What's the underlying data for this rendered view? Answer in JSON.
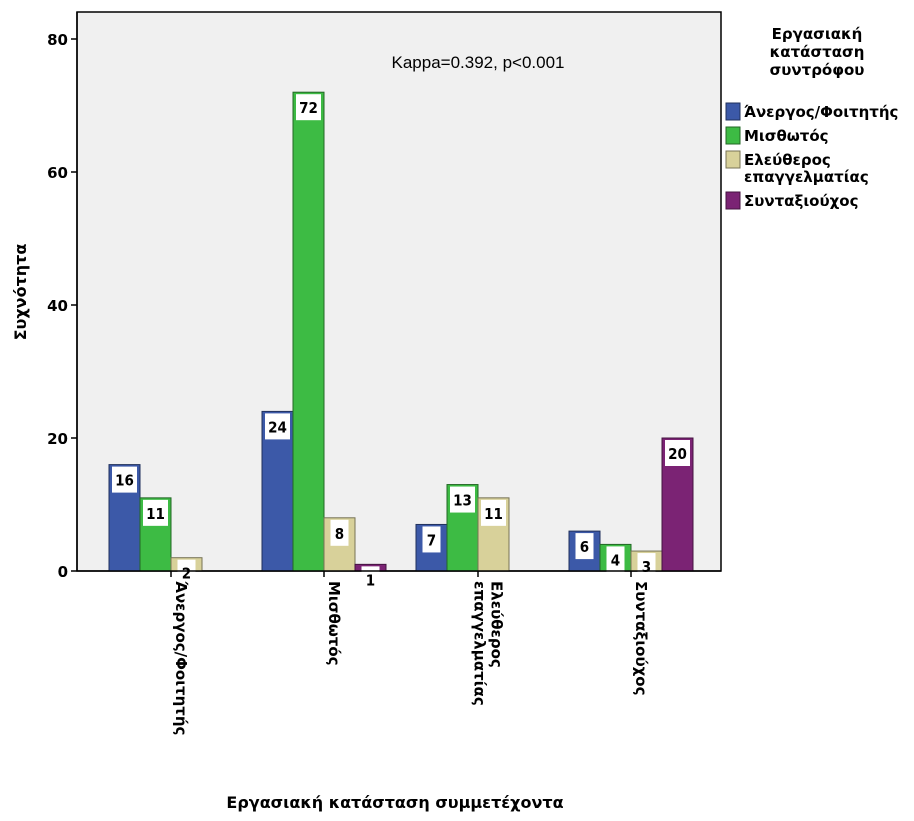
{
  "chart_data": {
    "type": "bar",
    "xlabel": "Εργασιακή κατάσταση συμμετέχοντα",
    "ylabel": "Συχνότητα",
    "annotation": "Kappa=0.392, p<0.001",
    "ylim": [
      0,
      80
    ],
    "yticks": [
      0,
      20,
      40,
      60,
      80
    ],
    "grid": false,
    "legend_position": "right",
    "legend_title": [
      "Εργασιακή",
      "κατάσταση",
      "συντρόφου"
    ],
    "categories": [
      [
        "Άνεργος/Φοιτητής"
      ],
      [
        "Μισθωτός"
      ],
      [
        "Ελεύθερος",
        "επαγγελματίας"
      ],
      [
        "Συνταξιούχος"
      ]
    ],
    "series": [
      {
        "name": "Άνεργος/Φοιτητής",
        "legend_lines": [
          "Άνεργος/Φοιτητής"
        ],
        "color": "#3c59a8",
        "values": [
          16,
          24,
          7,
          6
        ]
      },
      {
        "name": "Μισθωτός",
        "legend_lines": [
          "Μισθωτός"
        ],
        "color": "#3dbb44",
        "values": [
          11,
          72,
          13,
          4
        ]
      },
      {
        "name": "Ελεύθερος επαγγελματίας",
        "legend_lines": [
          "Ελεύθερος",
          "επαγγελματίας"
        ],
        "color": "#d8d19a",
        "values": [
          2,
          8,
          11,
          3
        ]
      },
      {
        "name": "Συνταξιούχος",
        "legend_lines": [
          "Συνταξιούχος"
        ],
        "color": "#7b2374",
        "values": [
          0,
          1,
          0,
          20
        ]
      }
    ]
  }
}
